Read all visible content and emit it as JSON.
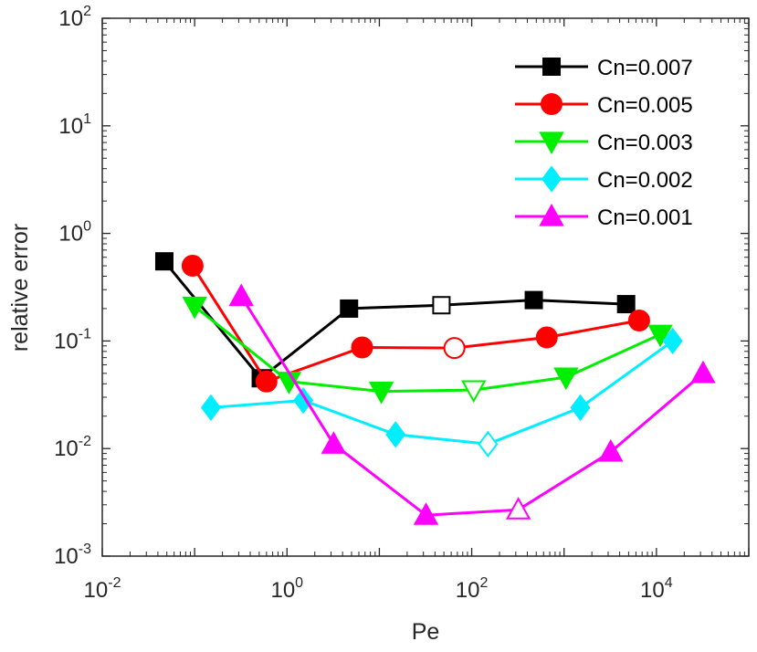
{
  "chart_data": {
    "type": "line",
    "title": "",
    "xlabel": "Pe",
    "ylabel": "relative error",
    "xscale": "log",
    "yscale": "log",
    "xlim": [
      0.01,
      100000
    ],
    "ylim": [
      0.001,
      100
    ],
    "x_ticks": [
      {
        "base": "10",
        "exp": "-2",
        "value": 0.01
      },
      {
        "base": "10",
        "exp": "0",
        "value": 1
      },
      {
        "base": "10",
        "exp": "2",
        "value": 100
      },
      {
        "base": "10",
        "exp": "4",
        "value": 10000
      }
    ],
    "y_ticks": [
      {
        "base": "10",
        "exp": "-3",
        "value": 0.001
      },
      {
        "base": "10",
        "exp": "-2",
        "value": 0.01
      },
      {
        "base": "10",
        "exp": "-1",
        "value": 0.1
      },
      {
        "base": "10",
        "exp": "0",
        "value": 1
      },
      {
        "base": "10",
        "exp": "1",
        "value": 10
      },
      {
        "base": "10",
        "exp": "2",
        "value": 100
      }
    ],
    "grid": false,
    "legend_position": "top-right",
    "series": [
      {
        "name": "Cn=0.007",
        "color": "#000000",
        "marker": "square",
        "marker_size": 9,
        "x": [
          0.047,
          0.52,
          4.7,
          47,
          470,
          4700
        ],
        "y": [
          0.55,
          0.045,
          0.2,
          0.215,
          0.24,
          0.22
        ],
        "hollow": [
          false,
          false,
          false,
          true,
          false,
          false
        ]
      },
      {
        "name": "Cn=0.005",
        "color": "#ff0000",
        "marker": "circle",
        "marker_size": 11,
        "x": [
          0.095,
          0.6,
          6.5,
          65,
          650,
          6500
        ],
        "y": [
          0.5,
          0.042,
          0.087,
          0.086,
          0.108,
          0.155
        ],
        "hollow": [
          false,
          false,
          false,
          true,
          false,
          false
        ]
      },
      {
        "name": "Cn=0.003",
        "color": "#00ee00",
        "marker": "triangle-down",
        "marker_size": 12,
        "x": [
          0.1,
          1.05,
          10.5,
          105,
          1050,
          11000
        ],
        "y": [
          0.21,
          0.042,
          0.034,
          0.035,
          0.046,
          0.115
        ],
        "hollow": [
          false,
          false,
          false,
          true,
          false,
          false
        ]
      },
      {
        "name": "Cn=0.002",
        "color": "#00eeff",
        "marker": "diamond",
        "marker_size": 13,
        "x": [
          0.15,
          1.5,
          15,
          150,
          1500,
          15000
        ],
        "y": [
          0.024,
          0.028,
          0.0135,
          0.011,
          0.024,
          0.1
        ],
        "hollow": [
          false,
          false,
          false,
          true,
          false,
          false
        ]
      },
      {
        "name": "Cn=0.001",
        "color": "#ff00ff",
        "marker": "triangle-up",
        "marker_size": 12,
        "x": [
          0.32,
          3.2,
          32,
          320,
          3200,
          32000
        ],
        "y": [
          0.26,
          0.011,
          0.0024,
          0.0027,
          0.0093,
          0.05
        ],
        "hollow": [
          false,
          false,
          false,
          true,
          false,
          false
        ]
      }
    ]
  }
}
